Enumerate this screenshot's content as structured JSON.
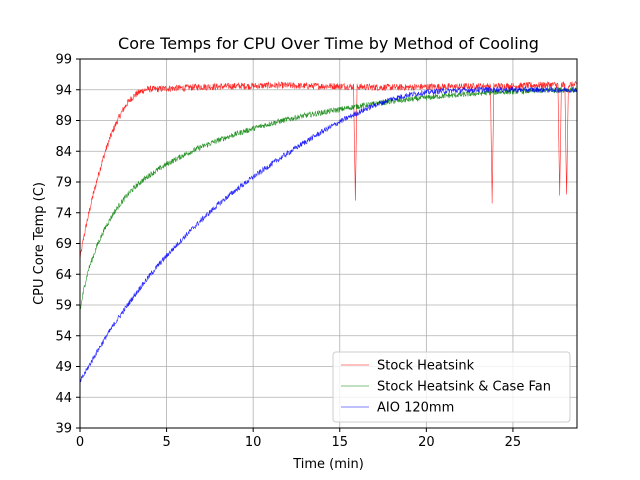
{
  "chart_data": {
    "type": "line",
    "title": "Core Temps for CPU Over Time by Method of Cooling",
    "xlabel": "Time (min)",
    "ylabel": "CPU Core Temp (C)",
    "xlim": [
      0,
      28.7
    ],
    "ylim": [
      39,
      99
    ],
    "xticks": [
      0,
      5,
      10,
      15,
      20,
      25
    ],
    "yticks": [
      39,
      44,
      49,
      54,
      59,
      64,
      69,
      74,
      79,
      84,
      89,
      94,
      99
    ],
    "grid": true,
    "legend_position": "lower right",
    "series": [
      {
        "name": "Stock Heatsink",
        "color": "#ff0000",
        "x": [
          0,
          0.25,
          0.5,
          0.75,
          1.0,
          1.25,
          1.5,
          1.75,
          2.0,
          2.25,
          2.5,
          2.75,
          3.0,
          3.25,
          3.5,
          3.75,
          4.0,
          4.5,
          5,
          6,
          7,
          8,
          9,
          10,
          11,
          12,
          13,
          14,
          15,
          15.8,
          15.9,
          16.0,
          17,
          18,
          19,
          20,
          21,
          22,
          23,
          23.7,
          23.8,
          23.9,
          25,
          26,
          27,
          27.6,
          27.7,
          27.8,
          28.0,
          28.1,
          28.2,
          28.3,
          28.7
        ],
        "y": [
          66.5,
          70.5,
          73.8,
          76.8,
          79.5,
          82.0,
          84.3,
          86.3,
          88.0,
          89.5,
          90.8,
          91.9,
          92.7,
          93.3,
          93.7,
          94.0,
          94.1,
          94.1,
          94.2,
          94.3,
          94.5,
          94.5,
          94.6,
          94.6,
          94.7,
          94.7,
          94.6,
          94.6,
          94.6,
          94.5,
          76.0,
          94.5,
          94.4,
          94.4,
          94.4,
          94.5,
          94.5,
          94.5,
          94.6,
          94.6,
          76.0,
          94.6,
          94.6,
          94.7,
          94.8,
          94.8,
          76.5,
          94.8,
          94.8,
          76.5,
          94.8,
          94.8,
          94.8
        ]
      },
      {
        "name": "Stock Heatsink & Case Fan",
        "color": "#008000",
        "x": [
          0,
          0.25,
          0.5,
          1,
          1.5,
          2,
          2.5,
          3,
          3.5,
          4,
          4.5,
          5,
          6,
          7,
          8,
          9,
          10,
          11,
          12,
          13,
          14,
          15,
          16,
          17,
          18,
          19,
          20,
          21,
          22,
          23,
          24,
          25,
          26,
          27,
          28,
          28.7
        ],
        "y": [
          58.0,
          62.0,
          64.8,
          68.8,
          71.8,
          74.2,
          76.1,
          77.7,
          79.0,
          80.1,
          81.0,
          81.9,
          83.4,
          84.7,
          85.8,
          86.8,
          87.7,
          88.5,
          89.2,
          89.8,
          90.3,
          90.8,
          91.3,
          91.7,
          92.1,
          92.4,
          92.7,
          93.0,
          93.2,
          93.4,
          93.6,
          93.7,
          93.8,
          93.9,
          94.0,
          94.0
        ]
      },
      {
        "name": "AIO 120mm",
        "color": "#0000ff",
        "x": [
          0,
          0.5,
          1,
          1.5,
          2,
          2.5,
          3,
          3.5,
          4,
          4.5,
          5,
          6,
          7,
          8,
          9,
          10,
          11,
          12,
          13,
          14,
          15,
          16,
          17,
          18,
          19,
          20,
          21,
          22,
          23,
          24,
          25,
          26,
          27,
          28,
          28.7
        ],
        "y": [
          46.5,
          49.0,
          51.5,
          53.8,
          56.0,
          58.0,
          60.0,
          61.9,
          63.7,
          65.4,
          67.0,
          70.0,
          72.8,
          75.4,
          77.7,
          79.8,
          81.8,
          83.7,
          85.5,
          87.2,
          88.8,
          90.2,
          91.5,
          92.5,
          93.2,
          93.6,
          93.8,
          93.9,
          94.0,
          94.0,
          94.0,
          94.0,
          94.0,
          94.0,
          94.0
        ]
      }
    ]
  }
}
